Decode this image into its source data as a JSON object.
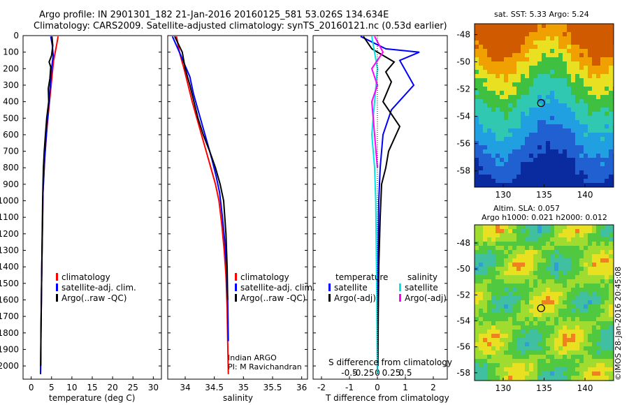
{
  "header": {
    "line1": "Argo profile: IN 2901301_182 21-Jan-2016 20160125_581 53.026S 134.634E",
    "line2": "Climatology: CARS2009. Satellite-adjusted climatology: synTS_20160121.nc (0.53d earlier)"
  },
  "colors": {
    "climatology": "#ff0000",
    "satellite": "#0000ff",
    "argo": "#000000",
    "sat_salinity": "#00e5e5",
    "argo_salinity": "#ff00ff"
  },
  "chart_data": [
    {
      "id": "temperature",
      "type": "line",
      "xlabel": "temperature (deg C)",
      "ylabel": "",
      "xlim": [
        -2,
        32
      ],
      "ylim": [
        2080,
        0
      ],
      "xticks": [
        0,
        5,
        10,
        15,
        20,
        25,
        30
      ],
      "yticks": [
        0,
        100,
        200,
        300,
        400,
        500,
        600,
        700,
        800,
        900,
        1000,
        1100,
        1200,
        1300,
        1400,
        1500,
        1600,
        1700,
        1800,
        1900,
        2000
      ],
      "legend": [
        "climatology",
        "satellite-adj. clim.",
        "Argo(..raw -QC)"
      ],
      "series": [
        {
          "name": "climatology",
          "color": "#ff0000",
          "x": [
            6.6,
            6.3,
            5.9,
            5.5,
            5.1,
            4.7,
            4.3,
            3.9,
            3.6,
            3.3,
            3.1,
            2.9,
            2.8,
            2.7,
            2.6,
            2.5,
            2.4,
            2.35,
            2.3
          ],
          "y": [
            5,
            50,
            100,
            150,
            250,
            350,
            450,
            550,
            650,
            750,
            850,
            950,
            1100,
            1250,
            1400,
            1600,
            1800,
            1950,
            2050
          ]
        },
        {
          "name": "satellite-adj. clim.",
          "color": "#0000ff",
          "x": [
            4.8,
            5.2,
            5.4,
            5.0,
            4.7,
            4.3,
            3.9,
            3.6,
            3.3,
            3.1,
            2.9,
            2.8,
            2.7,
            2.6,
            2.5,
            2.4,
            2.35,
            2.3
          ],
          "y": [
            5,
            60,
            120,
            200,
            300,
            420,
            530,
            640,
            740,
            850,
            950,
            1100,
            1250,
            1400,
            1600,
            1800,
            1950,
            2050
          ]
        },
        {
          "name": "Argo(..raw -QC)",
          "color": "#000000",
          "x": [
            5.1,
            5.3,
            5.0,
            4.4,
            4.8,
            4.6,
            4.2,
            4.3,
            3.8,
            3.5,
            3.2,
            3.0,
            2.9,
            2.8,
            2.7,
            2.6,
            2.5,
            2.4,
            2.35
          ],
          "y": [
            5,
            60,
            120,
            160,
            190,
            260,
            320,
            400,
            500,
            600,
            700,
            800,
            900,
            1000,
            1200,
            1400,
            1600,
            1800,
            2000
          ]
        }
      ]
    },
    {
      "id": "salinity",
      "type": "line",
      "xlabel": "salinity",
      "xlim": [
        33.7,
        36.1
      ],
      "ylim": [
        2080,
        0
      ],
      "xticks": [
        34,
        34.5,
        35,
        35.5,
        36
      ],
      "legend": [
        "climatology",
        "satellite-adj. clim.",
        "Argo(..raw -QC)"
      ],
      "annotation": [
        "Indian ARGO",
        "PI: M Ravichandran"
      ],
      "series": [
        {
          "name": "climatology",
          "color": "#ff0000",
          "x": [
            33.85,
            33.9,
            33.98,
            34.05,
            34.12,
            34.2,
            34.28,
            34.36,
            34.44,
            34.52,
            34.58,
            34.63,
            34.67,
            34.7,
            34.72,
            34.73,
            34.74
          ],
          "y": [
            5,
            100,
            200,
            300,
            400,
            500,
            600,
            700,
            800,
            900,
            1000,
            1150,
            1300,
            1450,
            1650,
            1850,
            2050
          ]
        },
        {
          "name": "satellite-adj. clim.",
          "color": "#0000ff",
          "x": [
            33.78,
            33.9,
            34.08,
            34.14,
            34.22,
            34.3,
            34.38,
            34.46,
            34.53,
            34.59,
            34.64,
            34.68,
            34.71,
            34.73,
            34.74
          ],
          "y": [
            5,
            100,
            250,
            350,
            450,
            550,
            650,
            750,
            850,
            950,
            1100,
            1250,
            1400,
            1600,
            1850
          ]
        },
        {
          "name": "Argo(..raw -QC)",
          "color": "#000000",
          "x": [
            33.82,
            33.95,
            34.0,
            34.08,
            34.15,
            34.22,
            34.31,
            34.42,
            34.52,
            34.6,
            34.66,
            34.7,
            34.72,
            34.73
          ],
          "y": [
            5,
            100,
            200,
            300,
            400,
            500,
            600,
            700,
            800,
            900,
            1000,
            1200,
            1400,
            1600
          ]
        }
      ]
    },
    {
      "id": "difference",
      "type": "line",
      "xlabel": "T difference from climatology",
      "xlabel_top": "S difference from climatology",
      "xlim": [
        -2.3,
        2.5
      ],
      "ylim": [
        2080,
        0
      ],
      "xticks_T": [
        -2,
        -1,
        0,
        1,
        2
      ],
      "xticks_S": [
        "-0.5",
        "-0.25",
        "0",
        "0.25",
        "0.5"
      ],
      "legend_temperature": {
        "title": "temperature",
        "items": [
          "satellite",
          "Argo(-adj)"
        ]
      },
      "legend_salinity": {
        "title": "salinity",
        "items": [
          "satellite",
          "Argo(-adj)"
        ]
      },
      "series": [
        {
          "name": "temperature satellite",
          "color": "#0000ff",
          "x": [
            -0.6,
            0.3,
            1.5,
            0.8,
            1.3,
            0.5,
            0.2,
            0.1,
            0.05,
            0.03,
            0.02,
            0.01,
            0.0
          ],
          "y": [
            5,
            80,
            100,
            150,
            300,
            450,
            600,
            800,
            1000,
            1300,
            1600,
            1900,
            2050
          ]
        },
        {
          "name": "temperature Argo(-adj)",
          "color": "#000000",
          "x": [
            -0.5,
            -0.2,
            0.6,
            0.3,
            0.5,
            0.2,
            0.8,
            0.4,
            0.3,
            0.15,
            0.1,
            0.05,
            0.03,
            0.02
          ],
          "y": [
            5,
            80,
            160,
            220,
            280,
            400,
            550,
            700,
            800,
            900,
            1100,
            1400,
            1700,
            2000
          ]
        },
        {
          "name": "salinity satellite",
          "color": "#00e5e5",
          "x": [
            -0.1,
            0.0,
            -0.05,
            -0.1,
            -0.05,
            -0.03,
            -0.02,
            -0.01,
            -0.005,
            0.0
          ],
          "y": [
            5,
            200,
            400,
            600,
            800,
            1000,
            1300,
            1600,
            1900,
            2050
          ]
        },
        {
          "name": "salinity Argo(-adj)",
          "color": "#ff00ff",
          "x": [
            -0.05,
            0.1,
            -0.1,
            0.0,
            -0.1,
            -0.05,
            0.0
          ],
          "y": [
            5,
            100,
            200,
            300,
            400,
            600,
            800
          ]
        }
      ]
    },
    {
      "id": "sst-map",
      "type": "heatmap",
      "title": "sat. SST: 5.33  Argo: 5.24",
      "xlim": [
        126.5,
        143.5
      ],
      "ylim": [
        -59.2,
        -47.2
      ],
      "xticks": [
        130,
        135,
        140
      ],
      "yticks": [
        -48,
        -50,
        -52,
        -54,
        -56,
        -58
      ],
      "marker": [
        134.634,
        -53.026
      ]
    },
    {
      "id": "sla-map",
      "type": "heatmap",
      "title": "Altim. SLA: 0.057",
      "subtitle": "Argo h1000: 0.021 h2000: 0.012",
      "xlim": [
        126.5,
        143.5
      ],
      "ylim": [
        -58.6,
        -46.6
      ],
      "xticks": [
        130,
        135,
        140
      ],
      "yticks": [
        -48,
        -50,
        -52,
        -54,
        -56,
        -58
      ],
      "marker": [
        134.634,
        -53.026
      ],
      "credit": "©IMOS 28-Jan-2016 20:45:08"
    }
  ]
}
